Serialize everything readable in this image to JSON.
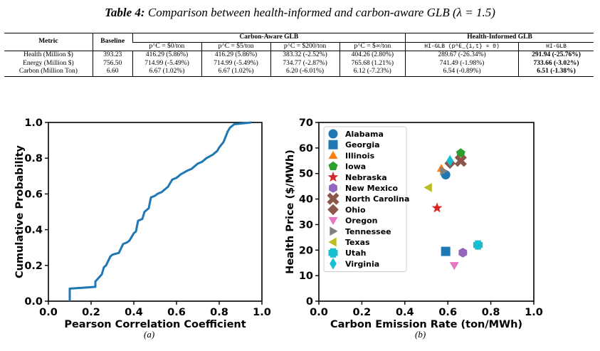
{
  "caption": {
    "label": "Table 4:",
    "text": "Comparison between health-informed and carbon-aware GLB (λ = 1.5)"
  },
  "table": {
    "header_metric": "Metric",
    "header_baseline": "Baseline",
    "header_carbon_group": "Carbon-Aware GLB",
    "header_health_group": "Health-Informed GLB",
    "sub_headers": [
      "p^C = $0/ton",
      "p^C = $5/ton",
      "p^C = $200/ton",
      "p^C = $∞/ton",
      "HI-GLB (p^E_{i,t} = 0)",
      "HI-GLB"
    ],
    "rows": [
      {
        "metric": "Health (Million $)",
        "baseline": "393.23",
        "c0": "416.29 (5.86%)",
        "c5": "416.29 (5.86%)",
        "c200": "383.32 (-2.52%)",
        "cinf": "404.26 (2.80%)",
        "hi0": "289.67 (-26.34%)",
        "hi": "291.94 (-25.76%)"
      },
      {
        "metric": "Energy (Million $)",
        "baseline": "756.50",
        "c0": "714.99 (-5.49%)",
        "c5": "714.99 (-5.49%)",
        "c200": "734.77 (-2.87%)",
        "cinf": "765.68 (1.21%)",
        "hi0": "741.49 (-1.98%)",
        "hi": "733.66 (-3.02%)"
      },
      {
        "metric": "Carbon (Million Ton)",
        "baseline": "6.60",
        "c0": "6.67 (1.02%)",
        "c5": "6.67 (1.02%)",
        "c200": "6.20 (-6.01%)",
        "cinf": "6.12 (-7.23%)",
        "hi0": "6.54 (-0.89%)",
        "hi": "6.51 (-1.38%)"
      }
    ]
  },
  "chart_data": [
    {
      "type": "line",
      "xlabel": "Pearson Correlation Coefficient",
      "ylabel": "Cumulative Probability",
      "xlim": [
        0.0,
        1.0
      ],
      "ylim": [
        0.0,
        1.0
      ],
      "xticks": [
        "0.0",
        "0.2",
        "0.4",
        "0.6",
        "0.8",
        "1.0"
      ],
      "yticks": [
        "0.0",
        "0.2",
        "0.4",
        "0.6",
        "0.8",
        "1.0"
      ],
      "color": "#1f77b4",
      "grid": false,
      "series": [
        {
          "x": [
            0.1,
            0.1,
            0.22,
            0.22,
            0.25,
            0.26,
            0.27,
            0.29,
            0.3,
            0.33,
            0.35,
            0.37,
            0.38,
            0.4,
            0.41,
            0.42,
            0.44,
            0.45,
            0.47,
            0.48,
            0.5,
            0.51,
            0.53,
            0.56,
            0.57,
            0.58,
            0.6,
            0.62,
            0.65,
            0.67,
            0.7,
            0.72,
            0.74,
            0.77,
            0.79,
            0.8,
            0.82,
            0.83,
            0.84,
            0.85,
            0.87,
            0.95
          ],
          "y": [
            0.0,
            0.07,
            0.08,
            0.11,
            0.15,
            0.19,
            0.2,
            0.25,
            0.26,
            0.27,
            0.32,
            0.33,
            0.34,
            0.38,
            0.39,
            0.45,
            0.46,
            0.5,
            0.52,
            0.58,
            0.59,
            0.6,
            0.61,
            0.64,
            0.66,
            0.68,
            0.69,
            0.71,
            0.73,
            0.74,
            0.77,
            0.78,
            0.8,
            0.82,
            0.84,
            0.86,
            0.89,
            0.92,
            0.95,
            0.97,
            0.99,
            1.0
          ]
        }
      ]
    },
    {
      "type": "scatter",
      "xlabel": "Carbon Emission Rate (ton/MWh)",
      "ylabel": "Health Price ($/MWh)",
      "xlim": [
        0.0,
        1.0
      ],
      "ylim": [
        0,
        70
      ],
      "xticks": [
        "0.0",
        "0.2",
        "0.4",
        "0.6",
        "0.8",
        "1.0"
      ],
      "yticks": [
        "0",
        "10",
        "20",
        "30",
        "40",
        "50",
        "60",
        "70"
      ],
      "grid": false,
      "legend": "top-left",
      "series": [
        {
          "name": "Alabama",
          "marker": "circle",
          "color": "#1f77b4",
          "x": 0.59,
          "y": 49.5
        },
        {
          "name": "Georgia",
          "marker": "square",
          "color": "#1f77b4",
          "x": 0.59,
          "y": 19.5
        },
        {
          "name": "Illinois",
          "marker": "triangle-up",
          "color": "#ff7f0e",
          "x": 0.57,
          "y": 52.0
        },
        {
          "name": "Iowa",
          "marker": "pentagon",
          "color": "#2ca02c",
          "x": 0.66,
          "y": 58.0
        },
        {
          "name": "Nebraska",
          "marker": "star",
          "color": "#d62728",
          "x": 0.55,
          "y": 36.5
        },
        {
          "name": "New Mexico",
          "marker": "hexagon",
          "color": "#9467bd",
          "x": 0.67,
          "y": 19.0
        },
        {
          "name": "North Carolina",
          "marker": "x-cross",
          "color": "#8c564b",
          "x": 0.66,
          "y": 55.0
        },
        {
          "name": "Ohio",
          "marker": "diamond",
          "color": "#8c564b",
          "x": 0.61,
          "y": 54.0
        },
        {
          "name": "Oregon",
          "marker": "triangle-down",
          "color": "#e377c2",
          "x": 0.63,
          "y": 14.0
        },
        {
          "name": "Tennessee",
          "marker": "triangle-right",
          "color": "#7f7f7f",
          "x": 0.58,
          "y": 51.0
        },
        {
          "name": "Texas",
          "marker": "triangle-left",
          "color": "#bcbd22",
          "x": 0.51,
          "y": 44.5
        },
        {
          "name": "Utah",
          "marker": "plus",
          "color": "#17becf",
          "x": 0.74,
          "y": 22.0
        },
        {
          "name": "Virginia",
          "marker": "thin-diamond",
          "color": "#17becf",
          "x": 0.61,
          "y": 55.0
        }
      ]
    }
  ],
  "sublabels": [
    "(a)",
    "(b)"
  ]
}
